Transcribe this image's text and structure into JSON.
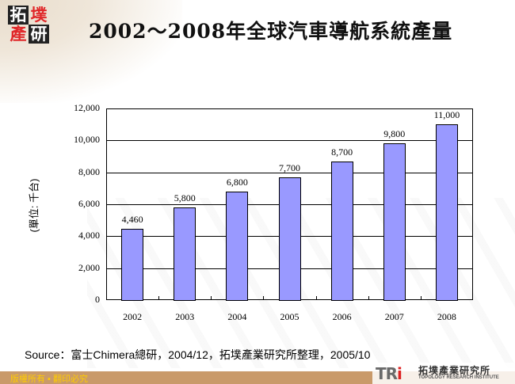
{
  "header": {
    "title": "2002～2008年全球汽車導航系統產量",
    "logo_chars": [
      "拓",
      "墣",
      "產",
      "研"
    ]
  },
  "chart_data": {
    "type": "bar",
    "title": "2002～2008年全球汽車導航系統產量",
    "xlabel": "",
    "ylabel": "(單位: 千台)",
    "categories": [
      "2002",
      "2003",
      "2004",
      "2005",
      "2006",
      "2007",
      "2008"
    ],
    "values": [
      4460,
      5800,
      6800,
      7700,
      8700,
      9800,
      11000
    ],
    "value_labels": [
      "4,460",
      "5,800",
      "6,800",
      "7,700",
      "8,700",
      "9,800",
      "11,000"
    ],
    "ylim": [
      0,
      12000
    ],
    "yticks": [
      "0",
      "2,000",
      "4,000",
      "6,000",
      "8,000",
      "10,000",
      "12,000"
    ],
    "grid": true,
    "legend": null,
    "bar_color": "#9999ff"
  },
  "footer": {
    "source": "Source：富士Chimera總研，2004/12，拓墣產業研究所整理，2005/10",
    "copyright": "版權所有 ▪ 翻印必究",
    "org_mark": "TRi",
    "org_name_cn": "拓墣產業研究所",
    "org_name_en": "TOPOLOGY RESEARCH INSTITUTE",
    "bar_color": "#c99a6a",
    "copyright_color": "#ffcc00"
  }
}
